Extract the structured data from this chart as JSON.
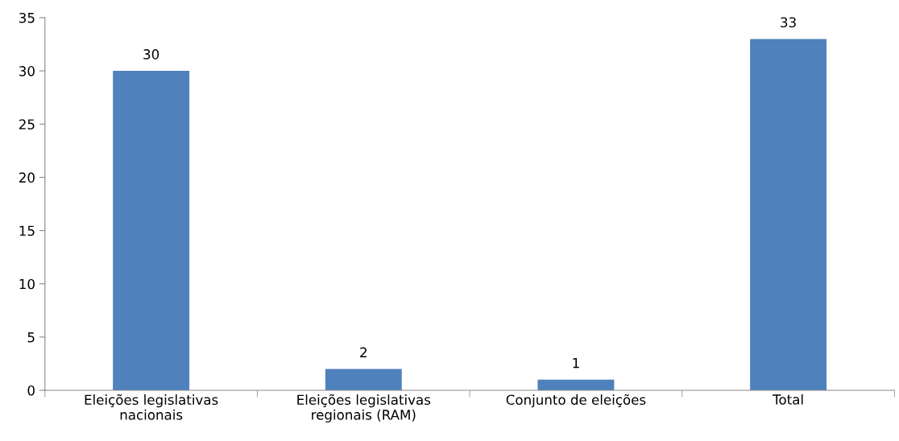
{
  "chart_data": {
    "type": "bar",
    "categories": [
      "Eleições legislativas\nnacionais",
      "Eleições legislativas\nregionais (RAM)",
      "Conjunto de eleições",
      "Total"
    ],
    "values": [
      30,
      2,
      1,
      33
    ],
    "color": "#4f81bd",
    "ylim": [
      0,
      35
    ],
    "yticks": [
      0,
      5,
      10,
      15,
      20,
      25,
      30,
      35
    ],
    "data_labels": true,
    "grid": false,
    "legend": false
  }
}
